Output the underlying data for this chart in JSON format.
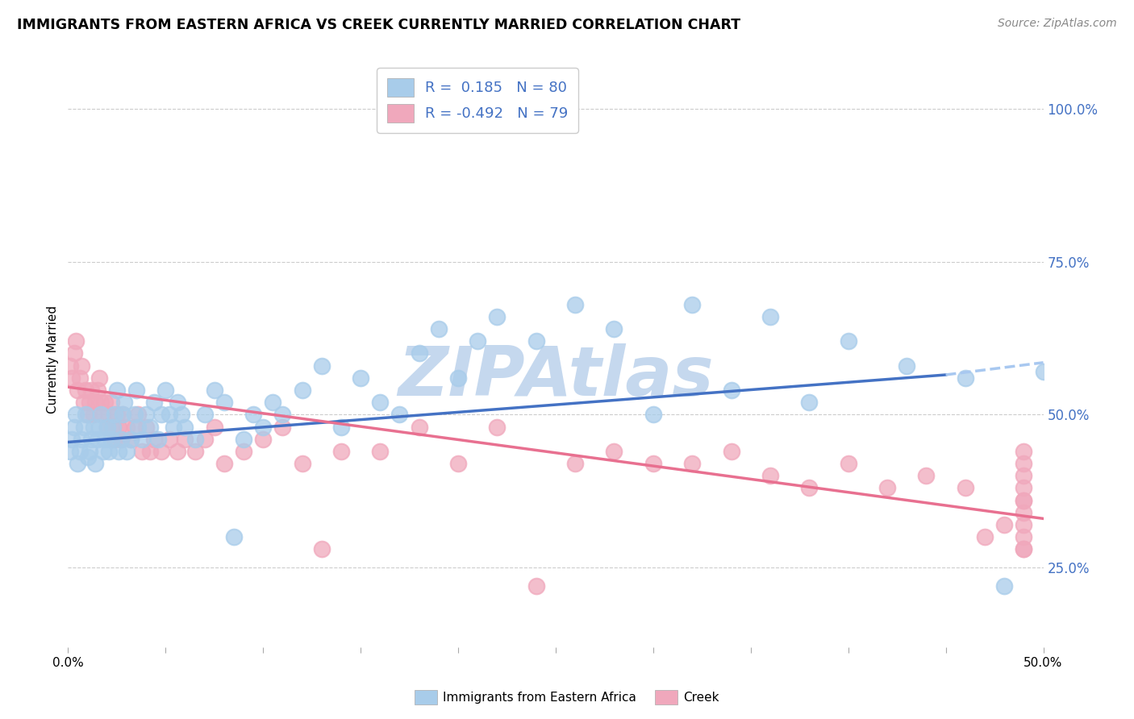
{
  "title": "IMMIGRANTS FROM EASTERN AFRICA VS CREEK CURRENTLY MARRIED CORRELATION CHART",
  "source": "Source: ZipAtlas.com",
  "ylabel": "Currently Married",
  "ytick_labels": [
    "25.0%",
    "50.0%",
    "75.0%",
    "100.0%"
  ],
  "ytick_values": [
    0.25,
    0.5,
    0.75,
    1.0
  ],
  "xlim": [
    0.0,
    0.5
  ],
  "ylim": [
    0.12,
    1.06
  ],
  "legend_label1": "Immigrants from Eastern Africa",
  "legend_label2": "Creek",
  "r1": 0.185,
  "n1": 80,
  "r2": -0.492,
  "n2": 79,
  "color_blue": "#A8CCEA",
  "color_pink": "#F0A8BC",
  "line_blue": "#4472C4",
  "line_pink": "#E87090",
  "line_dashed_blue": "#A8C8F0",
  "watermark_color": "#C5D8EE",
  "background_color": "#FFFFFF",
  "grid_color": "#CCCCCC",
  "blue_scatter_x": [
    0.001,
    0.002,
    0.003,
    0.004,
    0.005,
    0.006,
    0.007,
    0.008,
    0.009,
    0.01,
    0.011,
    0.012,
    0.013,
    0.014,
    0.015,
    0.016,
    0.017,
    0.018,
    0.019,
    0.02,
    0.021,
    0.022,
    0.023,
    0.024,
    0.025,
    0.026,
    0.027,
    0.028,
    0.029,
    0.03,
    0.032,
    0.034,
    0.035,
    0.036,
    0.038,
    0.04,
    0.042,
    0.044,
    0.046,
    0.048,
    0.05,
    0.052,
    0.054,
    0.056,
    0.058,
    0.06,
    0.065,
    0.07,
    0.075,
    0.08,
    0.085,
    0.09,
    0.095,
    0.1,
    0.105,
    0.11,
    0.12,
    0.13,
    0.14,
    0.15,
    0.16,
    0.17,
    0.18,
    0.19,
    0.2,
    0.21,
    0.22,
    0.24,
    0.26,
    0.28,
    0.3,
    0.32,
    0.34,
    0.36,
    0.38,
    0.4,
    0.43,
    0.46,
    0.48,
    0.5
  ],
  "blue_scatter_y": [
    0.44,
    0.46,
    0.48,
    0.5,
    0.42,
    0.44,
    0.46,
    0.48,
    0.5,
    0.43,
    0.44,
    0.46,
    0.48,
    0.42,
    0.46,
    0.48,
    0.5,
    0.44,
    0.46,
    0.48,
    0.44,
    0.46,
    0.48,
    0.5,
    0.54,
    0.44,
    0.46,
    0.5,
    0.52,
    0.44,
    0.46,
    0.5,
    0.54,
    0.48,
    0.46,
    0.5,
    0.48,
    0.52,
    0.46,
    0.5,
    0.54,
    0.5,
    0.48,
    0.52,
    0.5,
    0.48,
    0.46,
    0.5,
    0.54,
    0.52,
    0.3,
    0.46,
    0.5,
    0.48,
    0.52,
    0.5,
    0.54,
    0.58,
    0.48,
    0.56,
    0.52,
    0.5,
    0.6,
    0.64,
    0.56,
    0.62,
    0.66,
    0.62,
    0.68,
    0.64,
    0.5,
    0.68,
    0.54,
    0.66,
    0.52,
    0.62,
    0.58,
    0.56,
    0.22,
    0.57
  ],
  "pink_scatter_x": [
    0.001,
    0.002,
    0.003,
    0.004,
    0.005,
    0.006,
    0.007,
    0.008,
    0.009,
    0.01,
    0.011,
    0.012,
    0.013,
    0.014,
    0.015,
    0.016,
    0.017,
    0.018,
    0.019,
    0.02,
    0.021,
    0.022,
    0.023,
    0.024,
    0.025,
    0.026,
    0.027,
    0.028,
    0.03,
    0.032,
    0.034,
    0.036,
    0.038,
    0.04,
    0.042,
    0.044,
    0.048,
    0.052,
    0.056,
    0.06,
    0.065,
    0.07,
    0.075,
    0.08,
    0.09,
    0.1,
    0.11,
    0.12,
    0.13,
    0.14,
    0.16,
    0.18,
    0.2,
    0.22,
    0.24,
    0.26,
    0.28,
    0.3,
    0.32,
    0.34,
    0.36,
    0.38,
    0.4,
    0.42,
    0.44,
    0.46,
    0.47,
    0.48,
    0.49,
    0.49,
    0.49,
    0.49,
    0.49,
    0.49,
    0.49,
    0.49,
    0.49,
    0.49,
    0.49
  ],
  "pink_scatter_y": [
    0.58,
    0.56,
    0.6,
    0.62,
    0.54,
    0.56,
    0.58,
    0.52,
    0.54,
    0.5,
    0.52,
    0.54,
    0.5,
    0.52,
    0.54,
    0.56,
    0.52,
    0.5,
    0.52,
    0.48,
    0.5,
    0.52,
    0.48,
    0.46,
    0.5,
    0.48,
    0.46,
    0.5,
    0.48,
    0.46,
    0.48,
    0.5,
    0.44,
    0.48,
    0.44,
    0.46,
    0.44,
    0.46,
    0.44,
    0.46,
    0.44,
    0.46,
    0.48,
    0.42,
    0.44,
    0.46,
    0.48,
    0.42,
    0.28,
    0.44,
    0.44,
    0.48,
    0.42,
    0.48,
    0.22,
    0.42,
    0.44,
    0.42,
    0.42,
    0.44,
    0.4,
    0.38,
    0.42,
    0.38,
    0.4,
    0.38,
    0.3,
    0.32,
    0.4,
    0.3,
    0.28,
    0.36,
    0.42,
    0.44,
    0.38,
    0.36,
    0.34,
    0.32,
    0.28
  ]
}
